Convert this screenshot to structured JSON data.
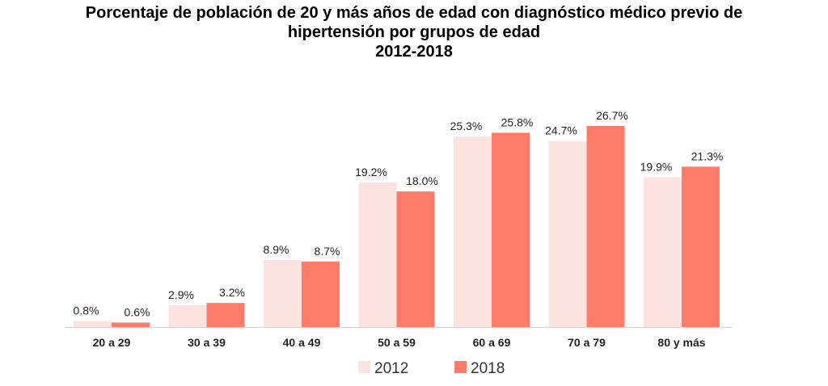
{
  "chart_data": {
    "type": "bar",
    "title": [
      "Porcentaje de población de 20 y más años de edad con diagnóstico médico previo de",
      "hipertensión por grupos de edad",
      "2012-2018"
    ],
    "categories": [
      "20 a 29",
      "30 a 39",
      "40 a 49",
      "50 a 59",
      "60 a 69",
      "70 a 79",
      "80 y más"
    ],
    "series": [
      {
        "name": "2012",
        "color": "#FDE3DF",
        "values": [
          0.8,
          2.9,
          8.9,
          19.2,
          25.3,
          24.7,
          19.9
        ],
        "labels": [
          "0.8%",
          "2.9%",
          "8.9%",
          "19.2%",
          "25.3%",
          "24.7%",
          "19.9%"
        ]
      },
      {
        "name": "2018",
        "color": "#FF7B69",
        "values": [
          0.6,
          3.2,
          8.7,
          18.0,
          25.8,
          26.7,
          21.3
        ],
        "labels": [
          "0.6%",
          "3.2%",
          "8.7%",
          "18.0%",
          "25.8%",
          "26.7%",
          "21.3%"
        ]
      }
    ],
    "xlabel": "",
    "ylabel": "",
    "ylim": [
      0,
      26.7
    ],
    "grid": false,
    "legend": "bottom"
  }
}
